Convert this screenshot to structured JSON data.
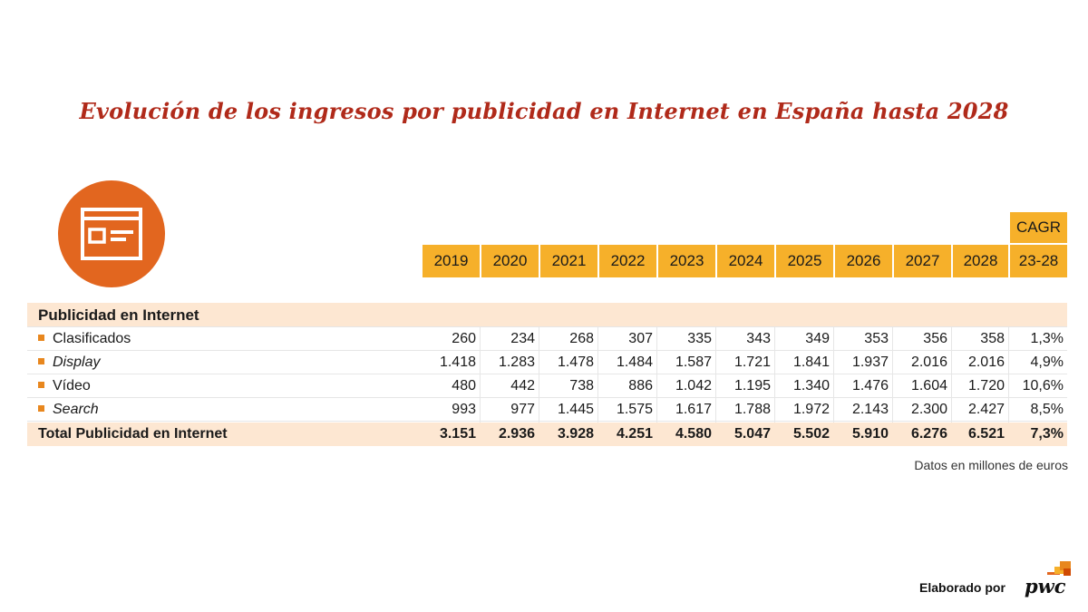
{
  "title": "Evolución de los ingresos por publicidad en Internet en España hasta 2028",
  "icon": "browser-window-icon",
  "colors": {
    "title": "#b02a1a",
    "header": "#f6b02a",
    "band": "#fde7d2",
    "accent": "#e2661f"
  },
  "chart_data": {
    "type": "table",
    "header": {
      "years": [
        "2019",
        "2020",
        "2021",
        "2022",
        "2023",
        "2024",
        "2025",
        "2026",
        "2027",
        "2028"
      ],
      "cagr_top": "CAGR",
      "cagr_bottom": "23-28"
    },
    "section": "Publicidad en Internet",
    "rows": [
      {
        "label": "Clasificados",
        "italic": false,
        "values": [
          "260",
          "234",
          "268",
          "307",
          "335",
          "343",
          "349",
          "353",
          "356",
          "358"
        ],
        "cagr": "1,3%"
      },
      {
        "label": "Display",
        "italic": true,
        "values": [
          "1.418",
          "1.283",
          "1.478",
          "1.484",
          "1.587",
          "1.721",
          "1.841",
          "1.937",
          "2.016",
          "2.016"
        ],
        "cagr": "4,9%"
      },
      {
        "label": "Vídeo",
        "italic": false,
        "values": [
          "480",
          "442",
          "738",
          "886",
          "1.042",
          "1.195",
          "1.340",
          "1.476",
          "1.604",
          "1.720"
        ],
        "cagr": "10,6%"
      },
      {
        "label": "Search",
        "italic": true,
        "values": [
          "993",
          "977",
          "1.445",
          "1.575",
          "1.617",
          "1.788",
          "1.972",
          "2.143",
          "2.300",
          "2.427"
        ],
        "cagr": "8,5%"
      }
    ],
    "total": {
      "label": "Total Publicidad en Internet",
      "values": [
        "3.151",
        "2.936",
        "3.928",
        "4.251",
        "4.580",
        "5.047",
        "5.502",
        "5.910",
        "6.276",
        "6.521"
      ],
      "cagr": "7,3%"
    }
  },
  "note": "Datos en millones de euros",
  "footer": {
    "text": "Elaborado por",
    "brand": "pwc"
  }
}
